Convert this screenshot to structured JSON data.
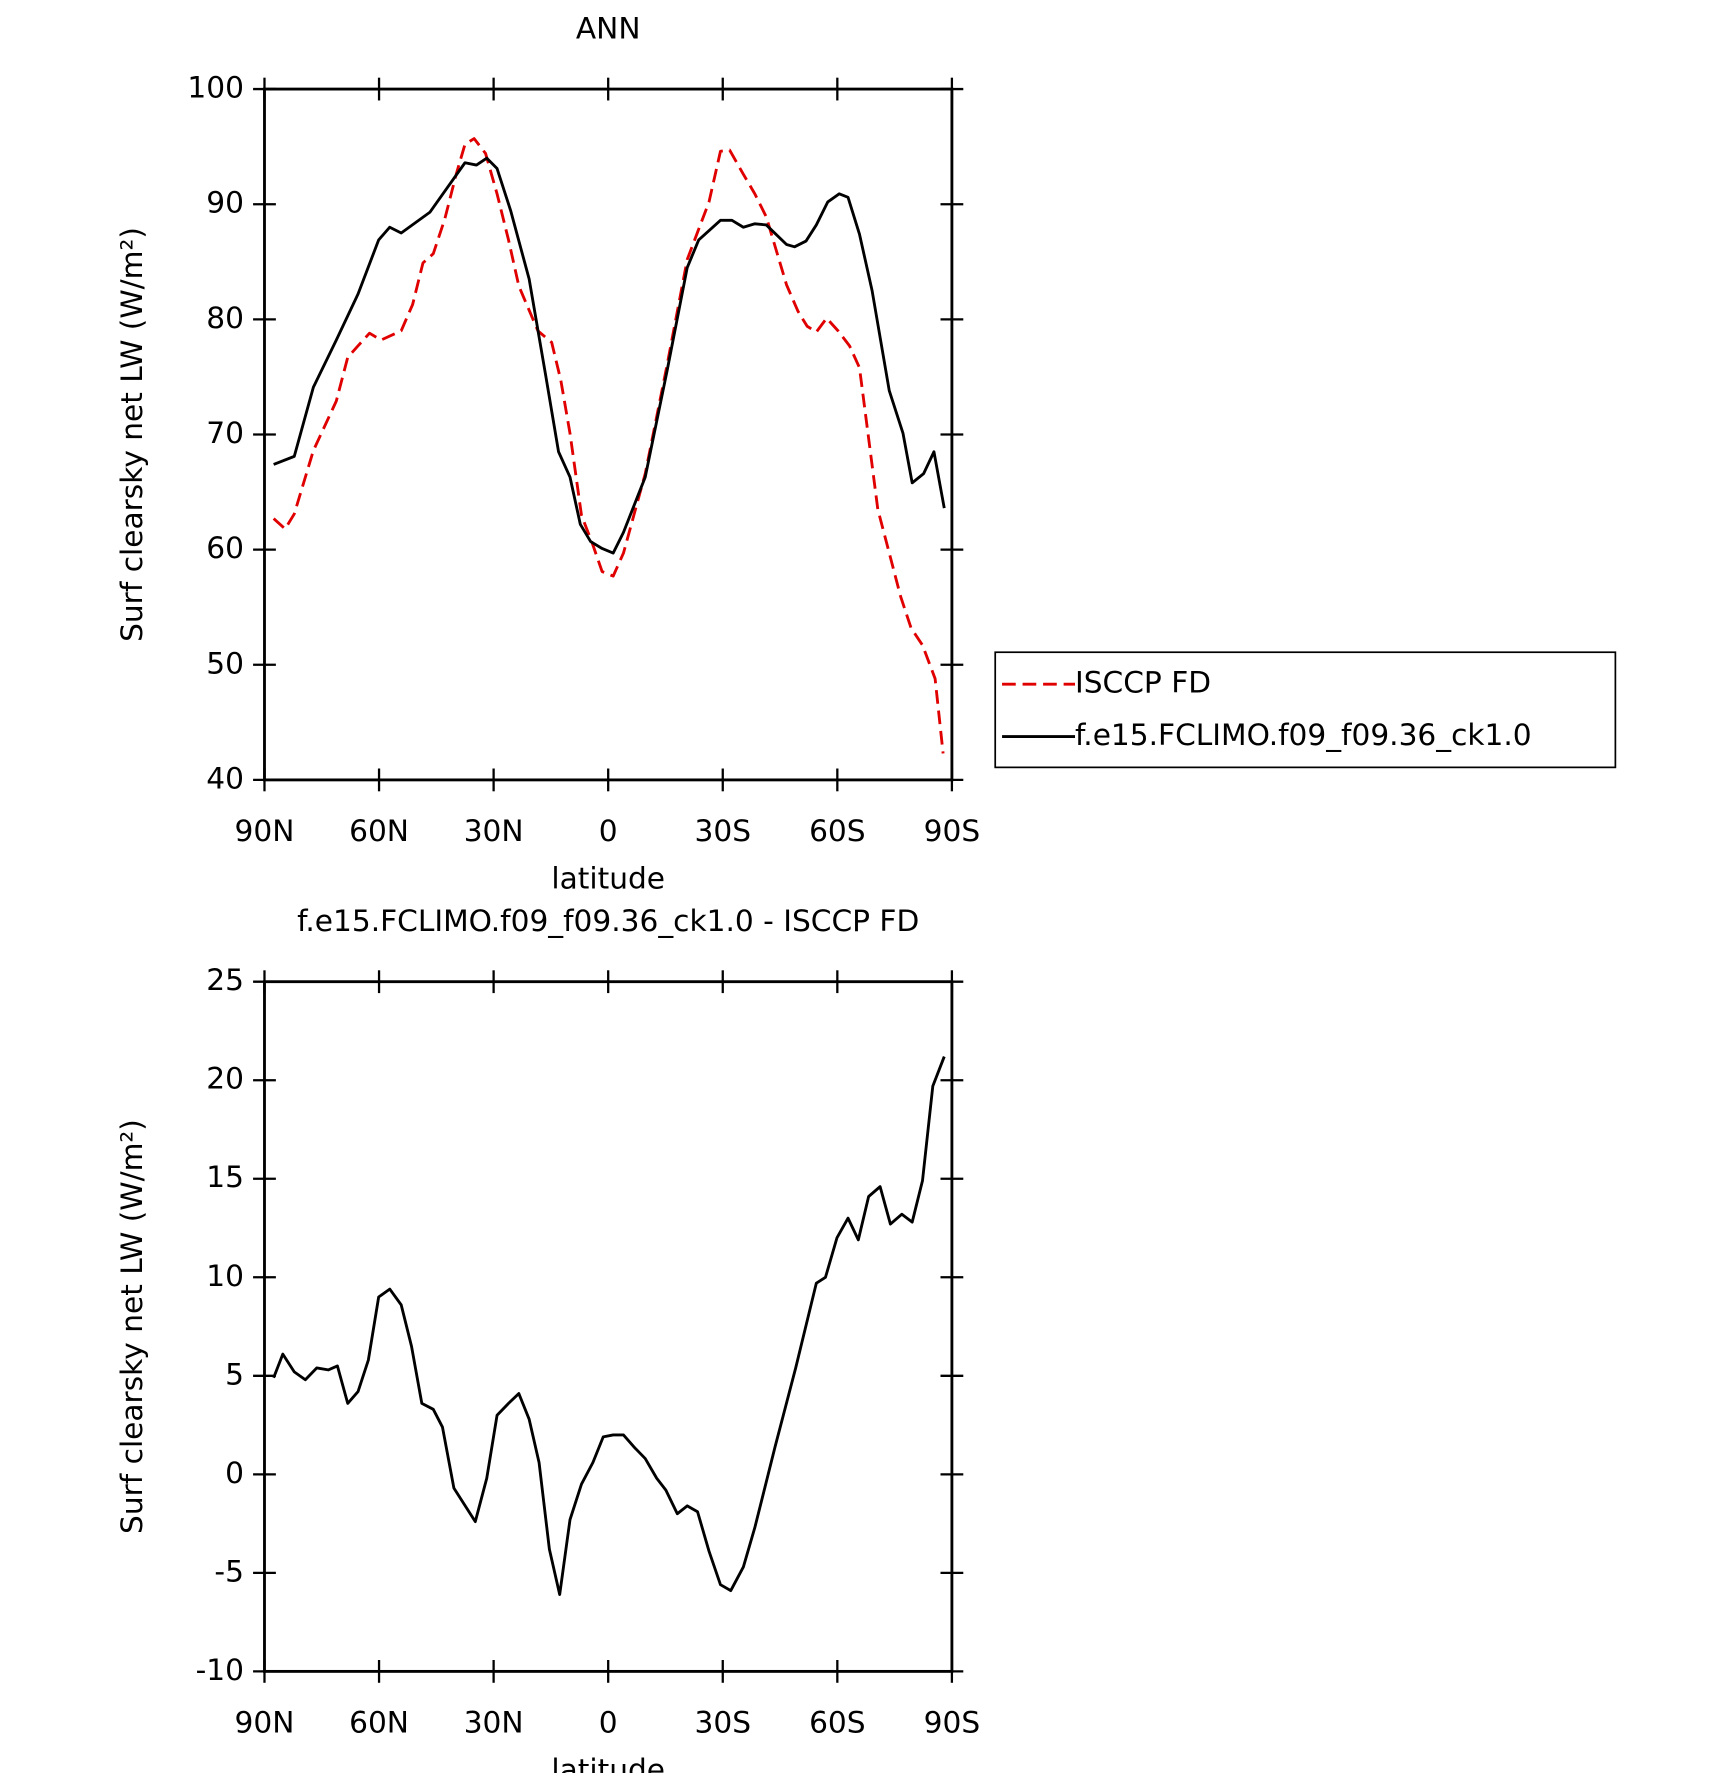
{
  "chart_data": [
    {
      "type": "line",
      "title": "ANN",
      "xlabel": "latitude",
      "ylabel": "Surf clearsky net LW (W/m²)",
      "xlim": [
        90,
        -90
      ],
      "xticks": [
        {
          "value": 90,
          "label": "90N"
        },
        {
          "value": 60,
          "label": "60N"
        },
        {
          "value": 30,
          "label": "30N"
        },
        0,
        {
          "value": -30,
          "label": "30S"
        },
        {
          "value": -60,
          "label": "60S"
        },
        {
          "value": -90,
          "label": "90S"
        }
      ],
      "ylim": [
        40,
        100
      ],
      "yticks": [
        40,
        50,
        60,
        70,
        80,
        90,
        100
      ],
      "legend": "right",
      "series": [
        {
          "name": "ISCCP FD",
          "color": "#e00000",
          "line_style": "dashed",
          "x": [
            87.6,
            84.6,
            82.2,
            77.2,
            71.2,
            68.2,
            65.5,
            62.5,
            59.5,
            54.2,
            51.2,
            48.5,
            45.8,
            42.8,
            39.8,
            37.5,
            35.1,
            32.1,
            29.1,
            26.1,
            23.4,
            18.4,
            14.8,
            12.4,
            10.0,
            7.0,
            4.0,
            1.6,
            -1.3,
            -4.0,
            -9.7,
            -15.4,
            -20.7,
            -26.4,
            -29.4,
            -31.8,
            -35.4,
            -38.4,
            -41.4,
            -46.7,
            -49.7,
            -52.1,
            -54.5,
            -57.2,
            -60.2,
            -63.2,
            -65.8,
            -70.6,
            -76.6,
            -79.3,
            -82.3,
            -85.6,
            -87.7
          ],
          "values": [
            62.7,
            61.8,
            63.1,
            68.6,
            72.9,
            76.7,
            77.7,
            78.8,
            78.2,
            79.0,
            81.3,
            84.9,
            85.7,
            88.7,
            92.6,
            95.2,
            95.7,
            94.4,
            90.9,
            86.9,
            82.9,
            79.0,
            78.0,
            74.7,
            70.1,
            63.0,
            60.4,
            58.1,
            57.7,
            59.7,
            66.6,
            76.0,
            85.2,
            90.2,
            94.6,
            94.7,
            92.6,
            90.9,
            88.9,
            83.0,
            80.7,
            79.4,
            78.9,
            80.1,
            79.0,
            77.7,
            75.8,
            63.5,
            55.9,
            53.2,
            51.7,
            48.8,
            42.3
          ]
        },
        {
          "name": "f.e15.FCLIMO.f09_f09.36_ck1.0",
          "color": "#000000",
          "line_style": "solid",
          "x": [
            87.6,
            82.2,
            77.2,
            71.2,
            65.5,
            60.1,
            57.2,
            54.2,
            46.7,
            42.2,
            37.5,
            34.5,
            31.8,
            29.1,
            25.5,
            20.7,
            16.3,
            13.0,
            10.0,
            7.3,
            4.6,
            1.6,
            -1.3,
            -4.0,
            -9.7,
            -15.4,
            -20.7,
            -23.7,
            -29.4,
            -32.4,
            -35.4,
            -38.4,
            -41.4,
            -46.7,
            -48.8,
            -51.8,
            -54.5,
            -57.5,
            -60.5,
            -62.8,
            -65.8,
            -69.1,
            -73.6,
            -77.2,
            -79.6,
            -82.6,
            -85.3,
            -88.0
          ],
          "values": [
            67.4,
            68.1,
            74.1,
            78.2,
            82.2,
            86.9,
            88.0,
            87.5,
            89.3,
            91.4,
            93.6,
            93.4,
            94.0,
            93.1,
            89.4,
            83.5,
            75.0,
            68.5,
            66.3,
            62.2,
            60.7,
            60.1,
            59.7,
            61.5,
            66.3,
            75.5,
            84.5,
            86.9,
            88.6,
            88.6,
            88.0,
            88.3,
            88.2,
            86.5,
            86.3,
            86.8,
            88.2,
            90.2,
            90.9,
            90.6,
            87.4,
            82.5,
            73.8,
            70.1,
            65.8,
            66.6,
            68.5,
            63.6
          ]
        }
      ]
    },
    {
      "type": "line",
      "title": "f.e15.FCLIMO.f09_f09.36_ck1.0 - ISCCP FD",
      "xlabel": "latitude",
      "ylabel": "Surf clearsky net LW (W/m²)",
      "xlim": [
        90,
        -90
      ],
      "xticks": [
        {
          "value": 90,
          "label": "90N"
        },
        {
          "value": 60,
          "label": "60N"
        },
        {
          "value": 30,
          "label": "30N"
        },
        0,
        {
          "value": -30,
          "label": "30S"
        },
        {
          "value": -60,
          "label": "60S"
        },
        {
          "value": -90,
          "label": "90S"
        }
      ],
      "ylim": [
        -10,
        25
      ],
      "yticks": [
        -10,
        -5,
        0,
        5,
        10,
        15,
        20,
        25
      ],
      "series": [
        {
          "color": "#000000",
          "line_style": "solid",
          "x": [
            87.6,
            85.2,
            82.2,
            79.3,
            76.3,
            73.3,
            70.9,
            68.2,
            65.5,
            62.8,
            60.1,
            57.2,
            54.2,
            51.5,
            48.8,
            45.8,
            43.4,
            40.4,
            34.8,
            31.8,
            29.1,
            26.1,
            23.4,
            20.7,
            18.1,
            15.4,
            12.7,
            10.0,
            7.0,
            4.0,
            1.3,
            -1.3,
            -4.0,
            -6.7,
            -9.7,
            -12.7,
            -15.1,
            -18.1,
            -20.7,
            -23.4,
            -26.4,
            -29.4,
            -32.1,
            -35.4,
            -38.4,
            -43.7,
            -49.1,
            -54.5,
            -56.9,
            -59.9,
            -62.8,
            -65.5,
            -68.2,
            -71.2,
            -73.9,
            -76.9,
            -79.6,
            -82.3,
            -85.0,
            -88.0
          ],
          "values": [
            4.9,
            6.1,
            5.2,
            4.8,
            5.4,
            5.3,
            5.5,
            3.6,
            4.2,
            5.8,
            9.0,
            9.4,
            8.6,
            6.5,
            3.6,
            3.3,
            2.4,
            -0.7,
            -2.4,
            -0.2,
            3.0,
            3.6,
            4.1,
            2.8,
            0.6,
            -3.8,
            -6.1,
            -2.3,
            -0.5,
            0.6,
            1.9,
            2.0,
            2.0,
            1.4,
            0.8,
            -0.2,
            -0.8,
            -2.0,
            -1.6,
            -1.9,
            -3.9,
            -5.6,
            -5.9,
            -4.7,
            -2.7,
            1.4,
            5.4,
            9.7,
            10.0,
            12.0,
            13.0,
            11.9,
            14.1,
            14.6,
            12.7,
            13.2,
            12.8,
            14.9,
            19.7,
            21.2
          ]
        }
      ]
    }
  ]
}
